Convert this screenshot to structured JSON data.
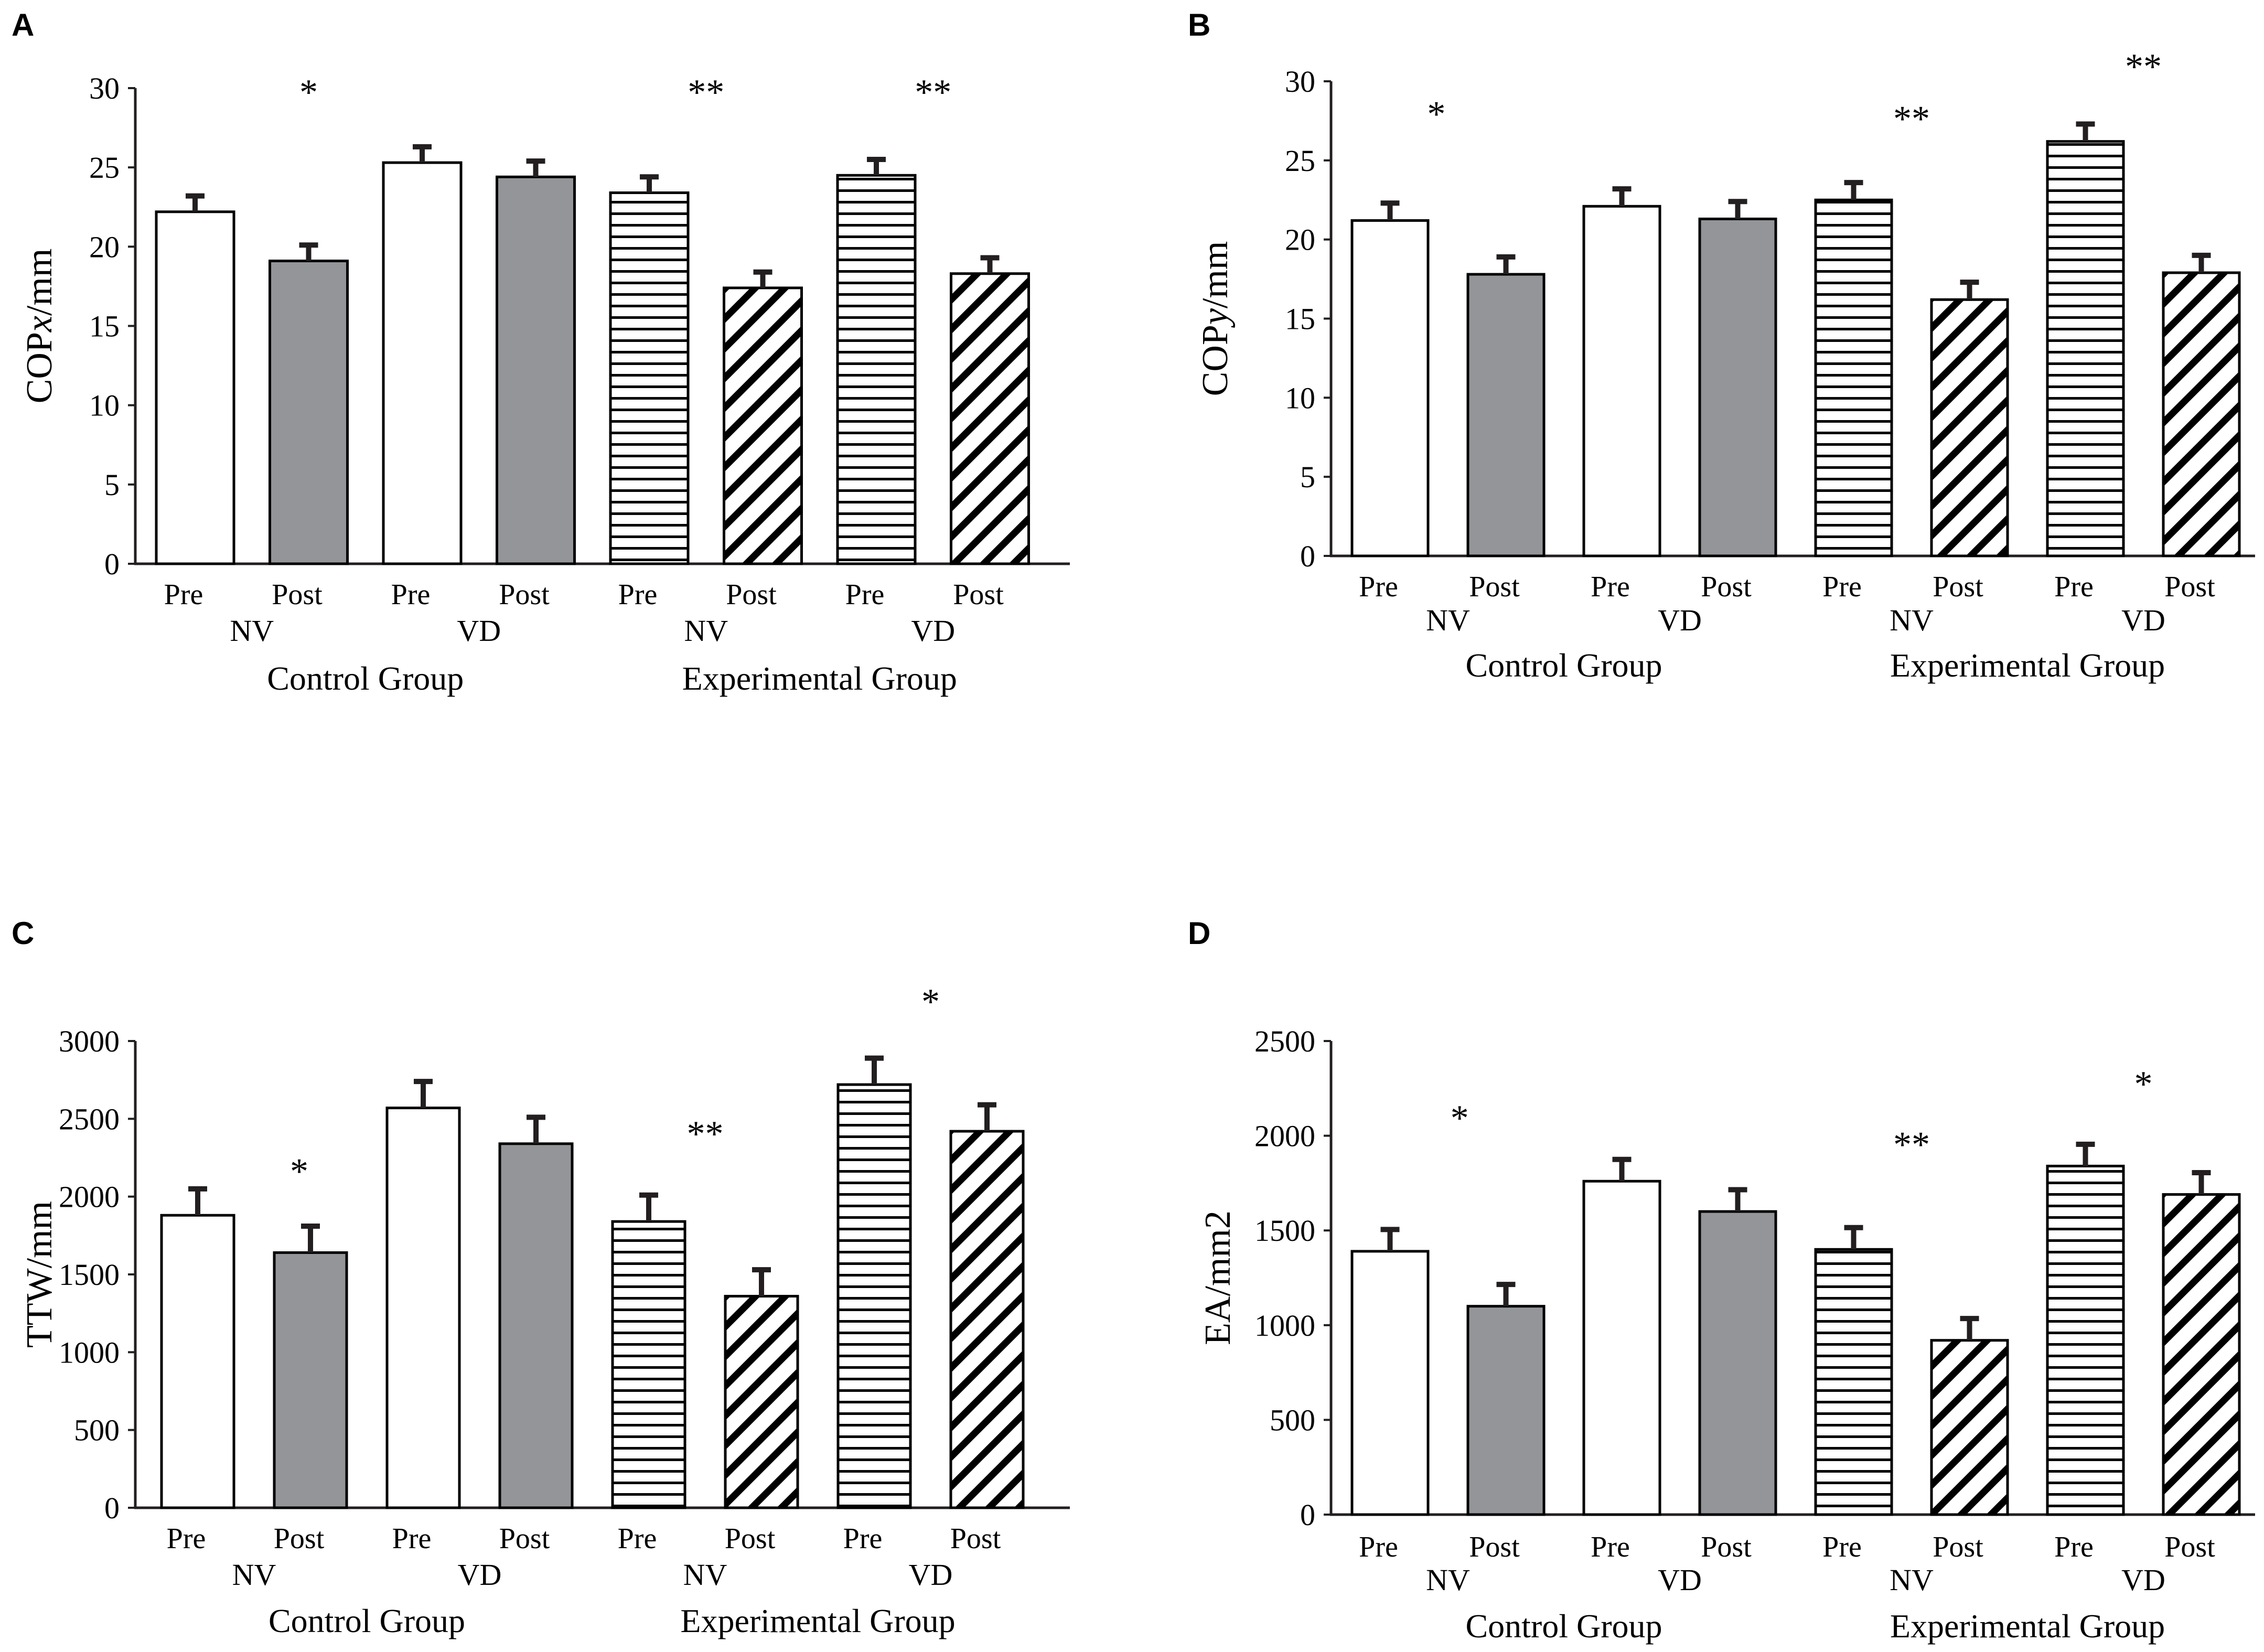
{
  "figure": {
    "bar_categories": [
      "Pre",
      "Post",
      "Pre",
      "Post",
      "Pre",
      "Post",
      "Pre",
      "Post"
    ],
    "condition_labels": [
      "NV",
      "VD",
      "NV",
      "VD"
    ],
    "group_labels": [
      "Control Group",
      "Experimental Group"
    ]
  },
  "colors": {
    "axis": "#231f20",
    "white_fill": "#ffffff",
    "gray_fill": "#939598",
    "pattern_ink": "#000000"
  },
  "chart_data": [
    {
      "panel": "A",
      "type": "bar",
      "ylabel_prefix": "COP",
      "ylabel_var": "x",
      "ylabel_suffix": "/mm",
      "ylim": [
        0,
        30
      ],
      "yticks": [
        0,
        5,
        10,
        15,
        20,
        25,
        30
      ],
      "values": [
        22.2,
        19.1,
        25.3,
        24.4,
        23.4,
        17.4,
        24.5,
        18.3
      ],
      "errors": [
        1.0,
        1.0,
        1.0,
        1.0,
        1.0,
        1.0,
        1.0,
        1.0
      ],
      "fills": [
        "white",
        "gray",
        "white",
        "gray",
        "hlines",
        "diag",
        "hlines",
        "diag"
      ],
      "significance": [
        {
          "label": "*",
          "bar_index": 1,
          "level": 30.3
        },
        {
          "label": "**",
          "bar_index": 4.5,
          "level": 30.3
        },
        {
          "label": "**",
          "bar_index": 6.5,
          "level": 30.3
        }
      ]
    },
    {
      "panel": "B",
      "type": "bar",
      "ylabel_prefix": "COP",
      "ylabel_var": "y",
      "ylabel_suffix": "/mm",
      "ylim": [
        0,
        30
      ],
      "yticks": [
        0,
        5,
        10,
        15,
        20,
        25,
        30
      ],
      "values": [
        21.2,
        17.8,
        22.1,
        21.3,
        22.5,
        16.2,
        26.2,
        17.9
      ],
      "errors": [
        1.1,
        1.1,
        1.1,
        1.1,
        1.1,
        1.1,
        1.1,
        1.1
      ],
      "fills": [
        "white",
        "gray",
        "white",
        "gray",
        "hlines",
        "diag",
        "hlines",
        "diag"
      ],
      "significance": [
        {
          "label": "*",
          "bar_index": 0.4,
          "level": 28.5
        },
        {
          "label": "**",
          "bar_index": 4.5,
          "level": 28.2
        },
        {
          "label": "**",
          "bar_index": 6.5,
          "level": 31.5
        }
      ]
    },
    {
      "panel": "C",
      "type": "bar",
      "ylabel_prefix": "TTW",
      "ylabel_var": "",
      "ylabel_suffix": "/mm",
      "ylim": [
        0,
        3000
      ],
      "yticks": [
        0,
        500,
        1000,
        1500,
        2000,
        2500,
        3000
      ],
      "values": [
        1880,
        1640,
        2570,
        2340,
        1840,
        1360,
        2720,
        2420
      ],
      "errors": [
        170,
        170,
        170,
        170,
        170,
        170,
        170,
        170
      ],
      "fills": [
        "white",
        "gray",
        "white",
        "gray",
        "hlines",
        "diag",
        "hlines",
        "diag"
      ],
      "significance": [
        {
          "label": "*",
          "bar_index": 0.9,
          "level": 2220
        },
        {
          "label": "**",
          "bar_index": 4.5,
          "level": 2460
        },
        {
          "label": "*",
          "bar_index": 6.5,
          "level": 3310
        }
      ]
    },
    {
      "panel": "D",
      "type": "bar",
      "ylabel_prefix": "EA",
      "ylabel_var": "",
      "ylabel_suffix": "/mm2",
      "ylim": [
        0,
        2500
      ],
      "yticks": [
        0,
        500,
        1000,
        1500,
        2000,
        2500
      ],
      "values": [
        1390,
        1100,
        1760,
        1600,
        1400,
        920,
        1840,
        1690
      ],
      "errors": [
        115,
        115,
        115,
        115,
        115,
        115,
        115,
        115
      ],
      "fills": [
        "white",
        "gray",
        "white",
        "gray",
        "hlines",
        "diag",
        "hlines",
        "diag"
      ],
      "significance": [
        {
          "label": "*",
          "bar_index": 0.6,
          "level": 2140
        },
        {
          "label": "**",
          "bar_index": 4.5,
          "level": 2000
        },
        {
          "label": "*",
          "bar_index": 6.5,
          "level": 2320
        }
      ]
    }
  ]
}
